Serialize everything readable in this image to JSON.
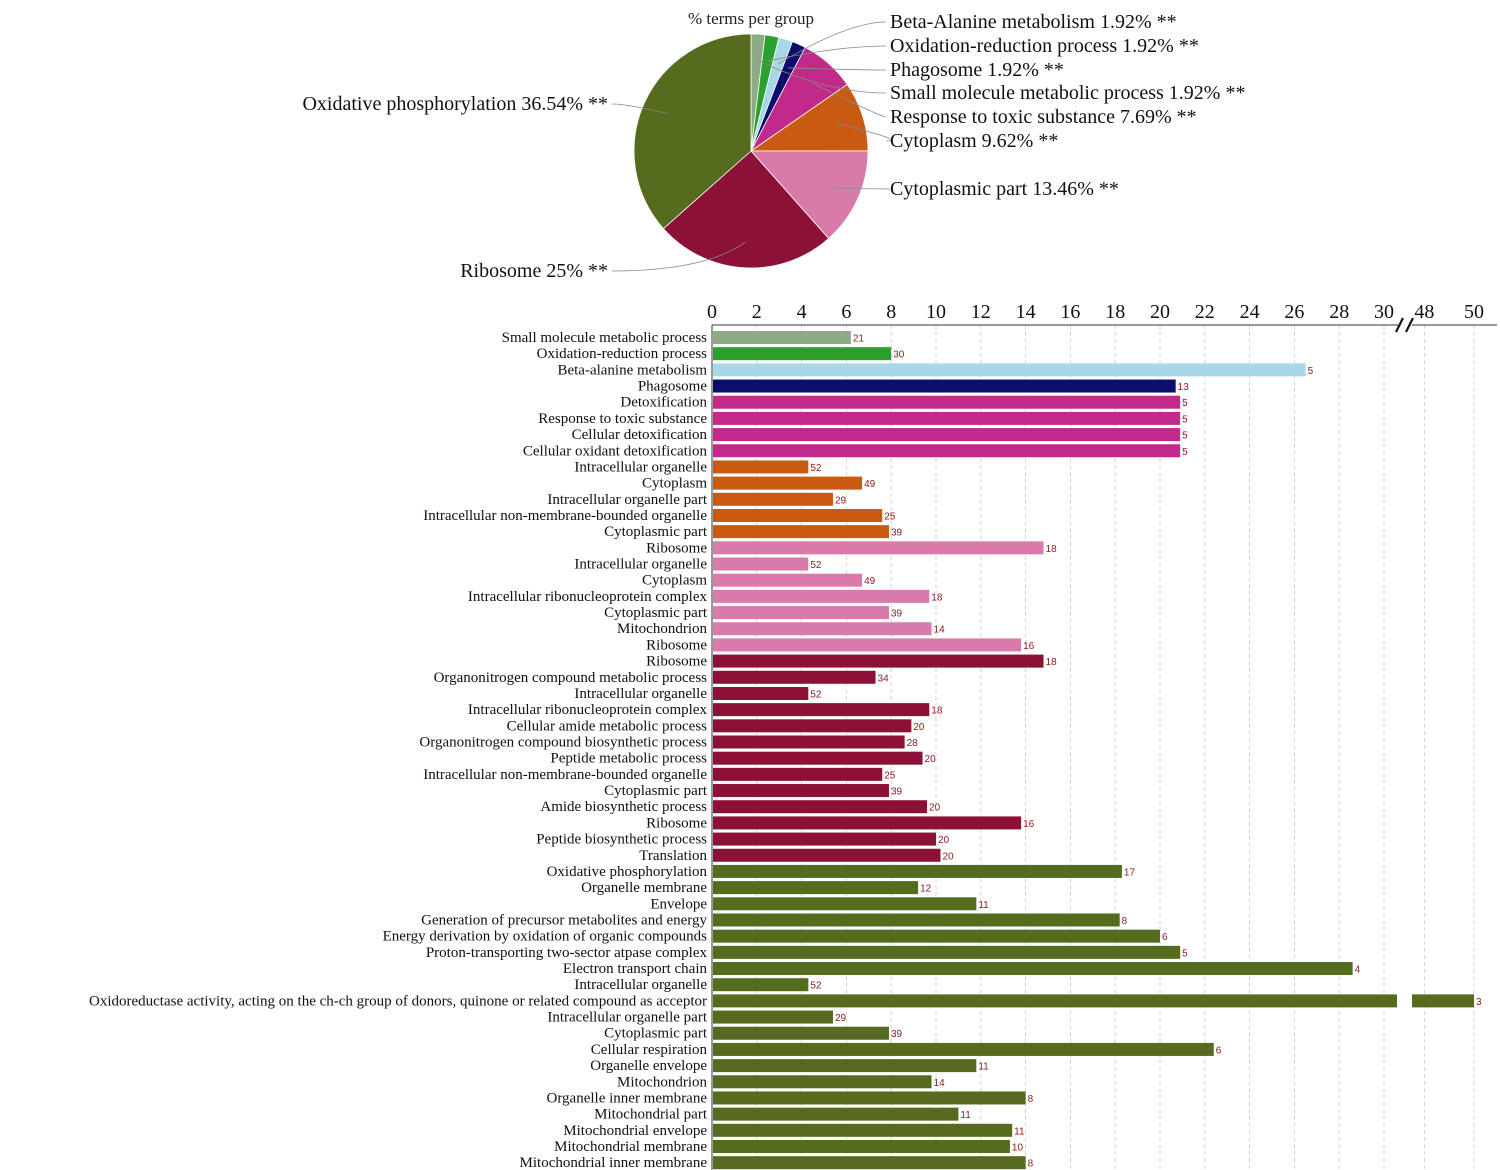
{
  "chart_data": [
    {
      "type": "pie",
      "title": "% terms per group",
      "slices": [
        {
          "label": "Small molecule metabolic process 1.92% **",
          "value": 1.92,
          "color": "#8faa86"
        },
        {
          "label": "Oxidation-reduction process 1.92% **",
          "value": 1.92,
          "color": "#2ca02c"
        },
        {
          "label": "Beta-Alanine metabolism 1.92% **",
          "value": 1.92,
          "color": "#a8d8e8"
        },
        {
          "label": "Phagosome 1.92% **",
          "value": 1.92,
          "color": "#0d0d6e"
        },
        {
          "label": "Response to toxic substance 7.69% **",
          "value": 7.69,
          "color": "#c12a8a"
        },
        {
          "label": "Cytoplasm 9.62% **",
          "value": 9.62,
          "color": "#c85a12"
        },
        {
          "label": "Cytoplasmic part 13.46% **",
          "value": 13.46,
          "color": "#d87aaa"
        },
        {
          "label": "Ribosome 25% **",
          "value": 25,
          "color": "#8c1136"
        },
        {
          "label": "Oxidative phosphorylation 36.54% **",
          "value": 36.54,
          "color": "#556b1e"
        }
      ],
      "right_labels": [
        "Beta-Alanine metabolism 1.92% **",
        "Oxidation-reduction process 1.92% **",
        "Phagosome 1.92% **",
        "Small molecule metabolic process 1.92% **",
        "Response to toxic substance 7.69% **",
        "Cytoplasm 9.62% **",
        "Cytoplasmic part 13.46% **"
      ]
    },
    {
      "type": "bar",
      "orientation": "horizontal",
      "x_ticks": [
        "0",
        "2",
        "4",
        "6",
        "8",
        "10",
        "12",
        "14",
        "16",
        "18",
        "20",
        "22",
        "24",
        "26",
        "28",
        "30",
        "48",
        "50"
      ],
      "x_break": "30–48",
      "grid": true,
      "colors": {
        "gray": "#8faa86",
        "green": "#2ca02c",
        "lightblue": "#a8d8e8",
        "navy": "#0d0d6e",
        "magenta": "#c12a8a",
        "orange": "#c85a12",
        "pink": "#d87aaa",
        "crimson": "#8c1136",
        "olive": "#556b1e"
      },
      "bars": [
        {
          "label": "Small molecule metabolic process",
          "value": 6.2,
          "count": "21",
          "color": "gray"
        },
        {
          "label": "Oxidation-reduction process",
          "value": 8.0,
          "count": "30",
          "color": "green"
        },
        {
          "label": "Beta-alanine metabolism",
          "value": 26.5,
          "count": "5",
          "color": "lightblue"
        },
        {
          "label": "Phagosome",
          "value": 20.7,
          "count": "13",
          "color": "navy"
        },
        {
          "label": "Detoxification",
          "value": 20.9,
          "count": "5",
          "color": "magenta"
        },
        {
          "label": "Response to toxic substance",
          "value": 20.9,
          "count": "5",
          "color": "magenta"
        },
        {
          "label": "Cellular detoxification",
          "value": 20.9,
          "count": "5",
          "color": "magenta"
        },
        {
          "label": "Cellular oxidant detoxification",
          "value": 20.9,
          "count": "5",
          "color": "magenta"
        },
        {
          "label": "Intracellular organelle",
          "value": 4.3,
          "count": "52",
          "color": "orange"
        },
        {
          "label": "Cytoplasm",
          "value": 6.7,
          "count": "49",
          "color": "orange"
        },
        {
          "label": "Intracellular organelle part",
          "value": 5.4,
          "count": "29",
          "color": "orange"
        },
        {
          "label": "Intracellular non-membrane-bounded organelle",
          "value": 7.6,
          "count": "25",
          "color": "orange"
        },
        {
          "label": "Cytoplasmic part",
          "value": 7.9,
          "count": "39",
          "color": "orange"
        },
        {
          "label": "Ribosome",
          "value": 14.8,
          "count": "18",
          "color": "pink"
        },
        {
          "label": "Intracellular organelle",
          "value": 4.3,
          "count": "52",
          "color": "pink"
        },
        {
          "label": "Cytoplasm",
          "value": 6.7,
          "count": "49",
          "color": "pink"
        },
        {
          "label": "Intracellular ribonucleoprotein complex",
          "value": 9.7,
          "count": "18",
          "color": "pink"
        },
        {
          "label": "Cytoplasmic part",
          "value": 7.9,
          "count": "39",
          "color": "pink"
        },
        {
          "label": "Mitochondrion",
          "value": 9.8,
          "count": "14",
          "color": "pink"
        },
        {
          "label": "Ribosome",
          "value": 13.8,
          "count": "16",
          "color": "pink"
        },
        {
          "label": "Ribosome",
          "value": 14.8,
          "count": "18",
          "color": "crimson"
        },
        {
          "label": "Organonitrogen compound metabolic process",
          "value": 7.3,
          "count": "34",
          "color": "crimson"
        },
        {
          "label": "Intracellular organelle",
          "value": 4.3,
          "count": "52",
          "color": "crimson"
        },
        {
          "label": "Intracellular ribonucleoprotein complex",
          "value": 9.7,
          "count": "18",
          "color": "crimson"
        },
        {
          "label": "Cellular amide metabolic process",
          "value": 8.9,
          "count": "20",
          "color": "crimson"
        },
        {
          "label": "Organonitrogen compound biosynthetic process",
          "value": 8.6,
          "count": "28",
          "color": "crimson"
        },
        {
          "label": "Peptide metabolic process",
          "value": 9.4,
          "count": "20",
          "color": "crimson"
        },
        {
          "label": "Intracellular non-membrane-bounded organelle",
          "value": 7.6,
          "count": "25",
          "color": "crimson"
        },
        {
          "label": "Cytoplasmic part",
          "value": 7.9,
          "count": "39",
          "color": "crimson"
        },
        {
          "label": "Amide biosynthetic process",
          "value": 9.6,
          "count": "20",
          "color": "crimson"
        },
        {
          "label": "Ribosome",
          "value": 13.8,
          "count": "16",
          "color": "crimson"
        },
        {
          "label": "Peptide biosynthetic process",
          "value": 10.0,
          "count": "20",
          "color": "crimson"
        },
        {
          "label": "Translation",
          "value": 10.2,
          "count": "20",
          "color": "crimson"
        },
        {
          "label": "Oxidative phosphorylation",
          "value": 18.3,
          "count": "17",
          "color": "olive"
        },
        {
          "label": "Organelle membrane",
          "value": 9.2,
          "count": "12",
          "color": "olive"
        },
        {
          "label": "Envelope",
          "value": 11.8,
          "count": "11",
          "color": "olive"
        },
        {
          "label": "Generation of precursor metabolites and energy",
          "value": 18.2,
          "count": "8",
          "color": "olive"
        },
        {
          "label": "Energy derivation by oxidation of organic compounds",
          "value": 20.0,
          "count": "6",
          "color": "olive"
        },
        {
          "label": "Proton-transporting two-sector atpase complex",
          "value": 20.9,
          "count": "5",
          "color": "olive"
        },
        {
          "label": "Electron transport chain",
          "value": 28.6,
          "count": "4",
          "color": "olive"
        },
        {
          "label": "Intracellular organelle",
          "value": 4.3,
          "count": "52",
          "color": "olive"
        },
        {
          "label": "Oxidoreductase activity, acting on the ch-ch group of donors, quinone or related compound as acceptor",
          "value": 50.0,
          "count": "3",
          "color": "olive"
        },
        {
          "label": "Intracellular organelle part",
          "value": 5.4,
          "count": "29",
          "color": "olive"
        },
        {
          "label": "Cytoplasmic part",
          "value": 7.9,
          "count": "39",
          "color": "olive"
        },
        {
          "label": "Cellular respiration",
          "value": 22.4,
          "count": "6",
          "color": "olive"
        },
        {
          "label": "Organelle envelope",
          "value": 11.8,
          "count": "11",
          "color": "olive"
        },
        {
          "label": "Mitochondrion",
          "value": 9.8,
          "count": "14",
          "color": "olive"
        },
        {
          "label": "Organelle inner membrane",
          "value": 14.0,
          "count": "8",
          "color": "olive"
        },
        {
          "label": "Mitochondrial part",
          "value": 11.0,
          "count": "11",
          "color": "olive"
        },
        {
          "label": "Mitochondrial envelope",
          "value": 13.4,
          "count": "11",
          "color": "olive"
        },
        {
          "label": "Mitochondrial membrane",
          "value": 13.3,
          "count": "10",
          "color": "olive"
        },
        {
          "label": "Mitochondrial inner membrane",
          "value": 14.0,
          "count": "8",
          "color": "olive"
        }
      ]
    }
  ]
}
